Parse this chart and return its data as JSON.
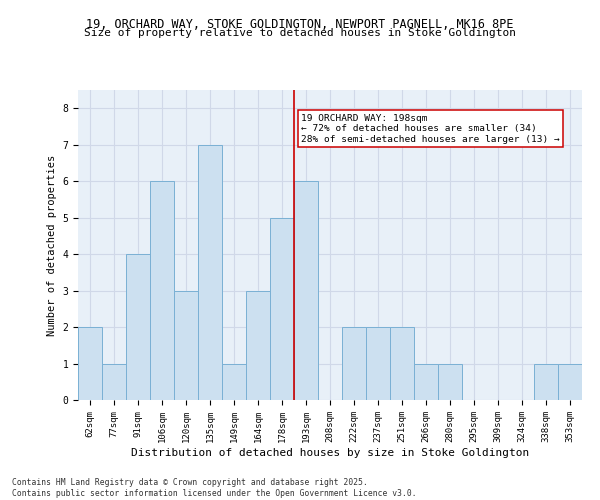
{
  "title_line1": "19, ORCHARD WAY, STOKE GOLDINGTON, NEWPORT PAGNELL, MK16 8PE",
  "title_line2": "Size of property relative to detached houses in Stoke Goldington",
  "xlabel": "Distribution of detached houses by size in Stoke Goldington",
  "ylabel": "Number of detached properties",
  "categories": [
    "62sqm",
    "77sqm",
    "91sqm",
    "106sqm",
    "120sqm",
    "135sqm",
    "149sqm",
    "164sqm",
    "178sqm",
    "193sqm",
    "208sqm",
    "222sqm",
    "237sqm",
    "251sqm",
    "266sqm",
    "280sqm",
    "295sqm",
    "309sqm",
    "324sqm",
    "338sqm",
    "353sqm"
  ],
  "values": [
    2,
    1,
    4,
    6,
    3,
    7,
    1,
    3,
    5,
    6,
    0,
    2,
    2,
    2,
    1,
    1,
    0,
    0,
    0,
    1,
    1
  ],
  "bar_color": "#cce0f0",
  "bar_edge_color": "#7ab0d4",
  "vline_index": 9,
  "annotation_title": "19 ORCHARD WAY: 198sqm",
  "annotation_line2": "← 72% of detached houses are smaller (34)",
  "annotation_line3": "28% of semi-detached houses are larger (13) →",
  "annotation_box_color": "#ffffff",
  "annotation_box_edge_color": "#cc0000",
  "vline_color": "#cc0000",
  "ylim": [
    0,
    8.5
  ],
  "yticks": [
    0,
    1,
    2,
    3,
    4,
    5,
    6,
    7,
    8
  ],
  "grid_color": "#d0d8e8",
  "bg_color": "#e8f0f8",
  "footer_line1": "Contains HM Land Registry data © Crown copyright and database right 2025.",
  "footer_line2": "Contains public sector information licensed under the Open Government Licence v3.0.",
  "title_fontsize": 8.5,
  "subtitle_fontsize": 8.0,
  "axis_label_fontsize": 7.5,
  "tick_fontsize": 6.5,
  "annotation_fontsize": 6.8,
  "footer_fontsize": 5.8
}
